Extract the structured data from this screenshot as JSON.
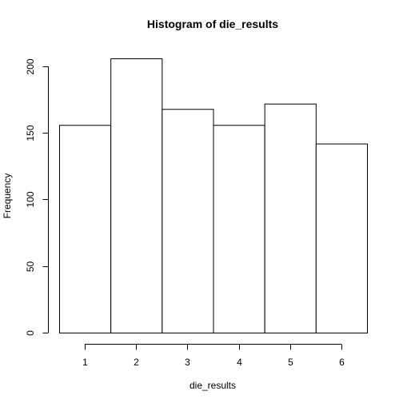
{
  "chart_data": {
    "type": "bar",
    "subtype": "histogram",
    "title": "Histogram of die_results",
    "xlabel": "die_results",
    "ylabel": "Frequency",
    "bins": [
      {
        "x": 1,
        "count": 156
      },
      {
        "x": 2,
        "count": 206
      },
      {
        "x": 3,
        "count": 168
      },
      {
        "x": 4,
        "count": 156
      },
      {
        "x": 5,
        "count": 172
      },
      {
        "x": 6,
        "count": 142
      }
    ],
    "bin_width": 1,
    "xlim": [
      0.5,
      6.5
    ],
    "ylim": [
      0,
      206
    ],
    "xticks": [
      1,
      2,
      3,
      4,
      5,
      6
    ],
    "yticks": [
      0,
      50,
      100,
      150,
      200
    ],
    "grid": false,
    "legend": "none",
    "bar_fill": "#ffffff",
    "bar_stroke": "#000000"
  }
}
